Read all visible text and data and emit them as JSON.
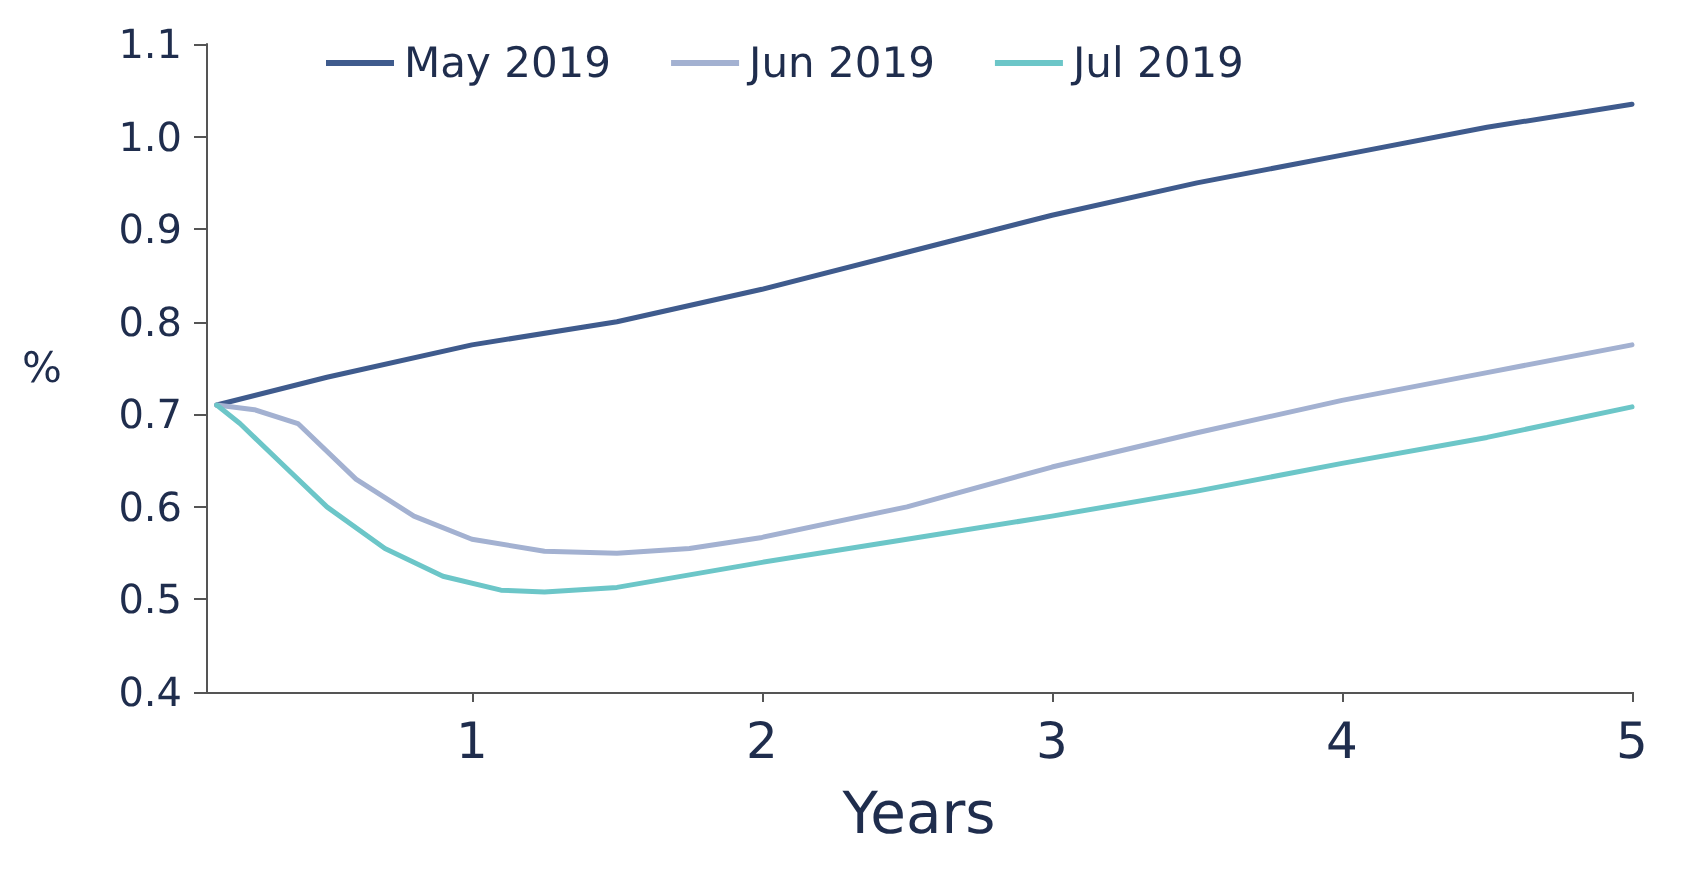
{
  "chart_data": {
    "type": "line",
    "xlabel": "Years",
    "ylabel": "%",
    "xlim": [
      0.083,
      5
    ],
    "xticks": [
      1,
      2,
      3,
      4,
      5
    ],
    "ylim": [
      0.4,
      1.1
    ],
    "yticks": [
      0.4,
      0.5,
      0.6,
      0.7,
      0.8,
      0.9,
      {
        "value": 1,
        "label": "1.0"
      },
      1.1
    ],
    "grid": false,
    "legend": "top",
    "marker": "none",
    "line_style": "solid",
    "series": [
      {
        "name": "May 2019",
        "color": "#3f5b8d",
        "x": [
          0.12,
          0.5,
          1,
          1.5,
          2,
          2.5,
          3,
          3.5,
          4,
          4.5,
          5
        ],
        "values": [
          0.71,
          0.74,
          0.775,
          0.8,
          0.835,
          0.875,
          0.915,
          0.95,
          0.98,
          1.01,
          1.035
        ]
      },
      {
        "name": "Jun 2019",
        "color": "#a3b1d1",
        "x": [
          0.12,
          0.25,
          0.4,
          0.6,
          0.8,
          1,
          1.25,
          1.5,
          1.75,
          2,
          2.5,
          3,
          3.5,
          4,
          4.5,
          5
        ],
        "values": [
          0.71,
          0.705,
          0.69,
          0.63,
          0.59,
          0.565,
          0.552,
          0.55,
          0.555,
          0.567,
          0.6,
          0.643,
          0.68,
          0.715,
          0.745,
          0.775
        ]
      },
      {
        "name": "Jul 2019",
        "color": "#6cc6c8",
        "x": [
          0.12,
          0.2,
          0.35,
          0.5,
          0.7,
          0.9,
          1.1,
          1.25,
          1.5,
          2,
          2.5,
          3,
          3.5,
          4,
          4.5,
          5
        ],
        "values": [
          0.71,
          0.69,
          0.645,
          0.6,
          0.555,
          0.525,
          0.51,
          0.508,
          0.513,
          0.54,
          0.565,
          0.59,
          0.617,
          0.647,
          0.675,
          0.708
        ]
      }
    ]
  }
}
